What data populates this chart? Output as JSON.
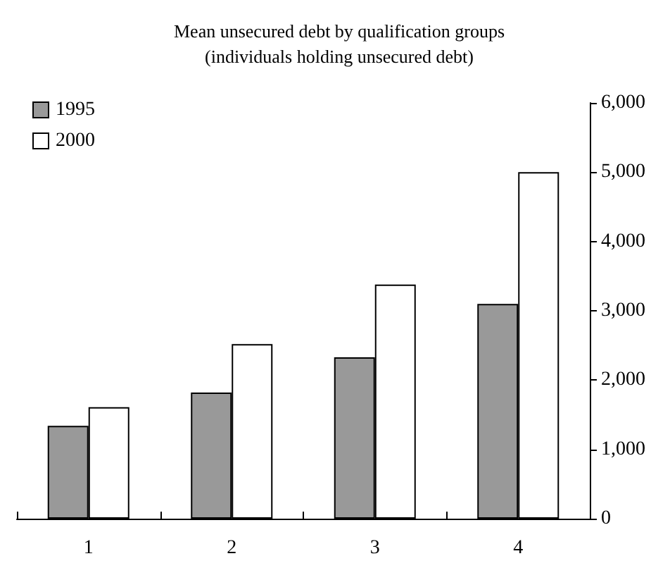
{
  "chart_data": {
    "type": "bar",
    "title": "Mean unsecured debt by qualification groups\n(individuals holding unsecured debt)",
    "categories": [
      "1",
      "2",
      "3",
      "4"
    ],
    "series": [
      {
        "name": "1995",
        "color": "#999999",
        "values": [
          1340,
          1820,
          2330,
          3100
        ]
      },
      {
        "name": "2000",
        "color": "#ffffff",
        "values": [
          1610,
          2520,
          3380,
          5000
        ]
      }
    ],
    "ylim": [
      0,
      6000
    ],
    "yticks": [
      0,
      {
        "value": 1000,
        "label": "1,000"
      },
      {
        "value": 2000,
        "label": "2,000"
      },
      {
        "value": 3000,
        "label": "3,000"
      },
      {
        "value": 4000,
        "label": "4,000"
      },
      {
        "value": 5000,
        "label": "5,000"
      },
      {
        "value": 6000,
        "label": "6,000"
      }
    ],
    "grid": false,
    "legend": "top left"
  }
}
